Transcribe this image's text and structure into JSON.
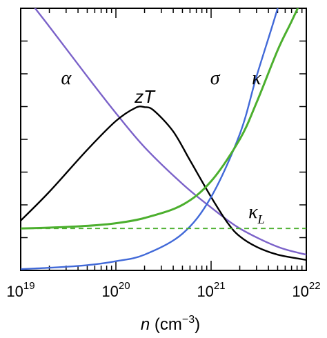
{
  "chart_data": {
    "type": "line",
    "title": "",
    "xlabel": {
      "symbol": "n",
      "unit_prefix": " (cm",
      "unit_exp": "−3",
      "unit_suffix": ")"
    },
    "ylabel": "",
    "x_scale": "log",
    "xlim": [
      1e+19,
      1e+22
    ],
    "ylim": [
      0,
      1
    ],
    "x_ticks": [
      {
        "base": "10",
        "exp": "19",
        "value": 1e+19
      },
      {
        "base": "10",
        "exp": "20",
        "value": 1e+20
      },
      {
        "base": "10",
        "exp": "21",
        "value": 1e+21
      },
      {
        "base": "10",
        "exp": "22",
        "value": 1e+22
      }
    ],
    "grid": false,
    "series": [
      {
        "name": "α",
        "color": "#7b62c9",
        "style": "solid",
        "x": [
          1e+19,
          2e+19,
          5e+19,
          1e+20,
          2e+20,
          5e+20,
          1e+21,
          2e+21,
          5e+21,
          1e+22
        ],
        "y": [
          1.07,
          0.93,
          0.74,
          0.6,
          0.47,
          0.33,
          0.24,
          0.16,
          0.09,
          0.06
        ]
      },
      {
        "name": "zT",
        "color": "#000000",
        "style": "solid",
        "x": [
          1e+19,
          2e+19,
          5e+19,
          1e+20,
          1.6e+20,
          2e+20,
          2.5e+20,
          4e+20,
          6e+20,
          1e+21,
          1.5e+21,
          2e+21,
          3e+21,
          5e+21,
          1e+22
        ],
        "y": [
          0.19,
          0.3,
          0.46,
          0.57,
          0.62,
          0.623,
          0.61,
          0.53,
          0.42,
          0.28,
          0.18,
          0.13,
          0.09,
          0.06,
          0.04
        ]
      },
      {
        "name": "σ",
        "color": "#4169d8",
        "style": "solid",
        "x": [
          1e+19,
          2e+19,
          5e+19,
          1e+20,
          2e+20,
          5e+20,
          1e+21,
          2e+21,
          3e+21,
          5e+21,
          7e+21
        ],
        "y": [
          0.005,
          0.01,
          0.02,
          0.035,
          0.06,
          0.14,
          0.28,
          0.52,
          0.74,
          1.0,
          1.2
        ]
      },
      {
        "name": "κ",
        "color": "#4caf2e",
        "style": "solid",
        "x": [
          1e+19,
          2e+19,
          5e+19,
          1e+20,
          2e+20,
          5e+20,
          1e+21,
          2e+21,
          3e+21,
          5e+21,
          7e+21,
          1e+22
        ],
        "y": [
          0.16,
          0.163,
          0.17,
          0.18,
          0.2,
          0.25,
          0.34,
          0.5,
          0.64,
          0.84,
          0.95,
          1.07
        ]
      },
      {
        "name": "κ_L",
        "color": "#4caf2e",
        "style": "dashed",
        "x": [
          1e+19,
          1e+22
        ],
        "y": [
          0.16,
          0.16
        ]
      }
    ],
    "annotations": [
      {
        "id": "alpha",
        "text": "α",
        "x": 3e+19,
        "y": 0.71
      },
      {
        "id": "zt",
        "text": "zT",
        "x": 2e+20,
        "y": 0.64
      },
      {
        "id": "sigma",
        "text": "σ",
        "x": 1.1e+21,
        "y": 0.71
      },
      {
        "id": "kappa",
        "text": "κ",
        "x": 3e+21,
        "y": 0.71
      },
      {
        "id": "kappa_l",
        "text": "κ",
        "sub": "L",
        "x": 3e+21,
        "y": 0.2
      }
    ]
  }
}
